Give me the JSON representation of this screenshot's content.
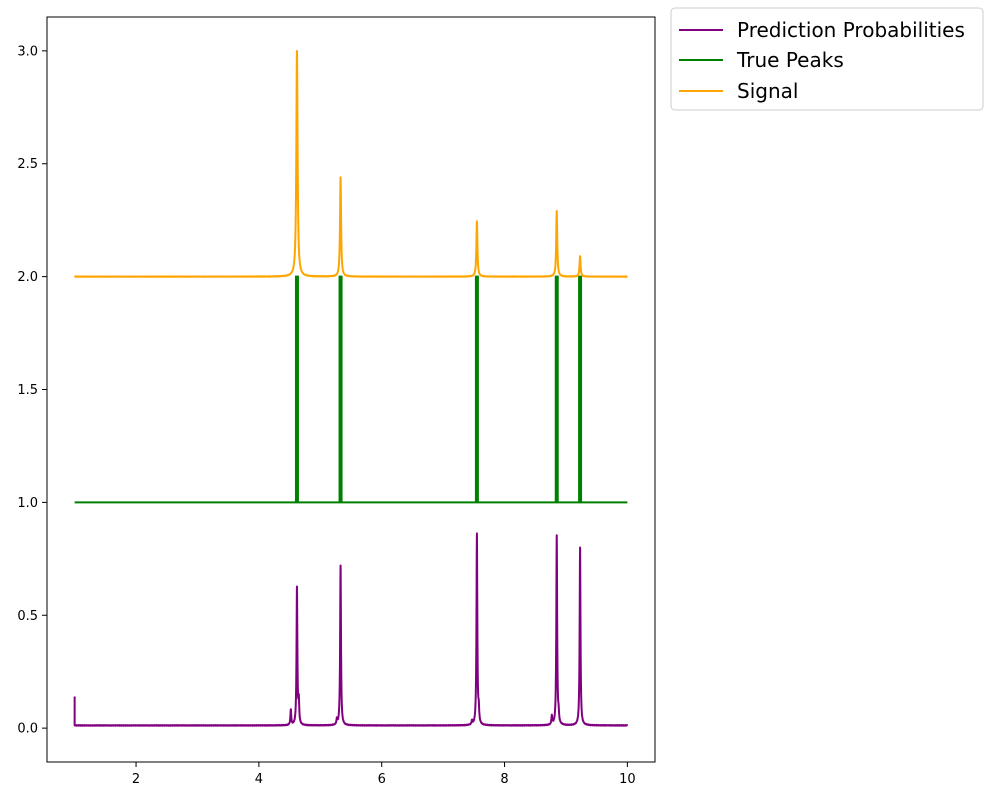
{
  "chart_data": {
    "type": "line",
    "title": "",
    "xlabel": "",
    "ylabel": "",
    "xlim": [
      0.55,
      10.45
    ],
    "ylim": [
      -0.15,
      3.15
    ],
    "x_ticks": [
      2,
      4,
      6,
      8,
      10
    ],
    "y_ticks": [
      0.0,
      0.5,
      1.0,
      1.5,
      2.0,
      2.5,
      3.0
    ],
    "x_tick_labels": [
      "2",
      "4",
      "6",
      "8",
      "10"
    ],
    "y_tick_labels": [
      "0.0",
      "0.5",
      "1.0",
      "1.5",
      "2.0",
      "2.5",
      "3.0"
    ],
    "grid": false,
    "legend_position": "outside-top-right",
    "series": [
      {
        "name": "Prediction Probabilities",
        "color": "#800080",
        "baseline": 0.012,
        "x_start": 1.0,
        "x_end": 10.0,
        "start_spike": 0.14,
        "peaks": [
          {
            "x": 4.52,
            "y": 0.08,
            "width": 0.008
          },
          {
            "x": 4.62,
            "y": 0.62,
            "width": 0.008
          },
          {
            "x": 4.65,
            "y": 0.11,
            "width": 0.008
          },
          {
            "x": 5.27,
            "y": 0.035,
            "width": 0.008
          },
          {
            "x": 5.33,
            "y": 0.72,
            "width": 0.008
          },
          {
            "x": 7.47,
            "y": 0.03,
            "width": 0.008
          },
          {
            "x": 7.55,
            "y": 0.86,
            "width": 0.008
          },
          {
            "x": 7.58,
            "y": 0.07,
            "width": 0.008
          },
          {
            "x": 8.77,
            "y": 0.05,
            "width": 0.008
          },
          {
            "x": 8.85,
            "y": 0.85,
            "width": 0.008
          },
          {
            "x": 8.88,
            "y": 0.05,
            "width": 0.008
          },
          {
            "x": 9.23,
            "y": 0.8,
            "width": 0.008
          }
        ]
      },
      {
        "name": "True Peaks",
        "color": "#008000",
        "baseline": 1.0,
        "x_start": 1.0,
        "x_end": 10.0,
        "peaks_x": [
          4.62,
          5.33,
          7.55,
          8.85,
          9.23
        ],
        "peak_y": 2.0
      },
      {
        "name": "Signal",
        "color": "#FFA500",
        "baseline": 2.0,
        "x_start": 1.0,
        "x_end": 10.0,
        "peaks": [
          {
            "x": 4.62,
            "y": 3.0,
            "width": 0.012
          },
          {
            "x": 5.33,
            "y": 2.44,
            "width": 0.01
          },
          {
            "x": 7.55,
            "y": 2.245,
            "width": 0.01
          },
          {
            "x": 8.85,
            "y": 2.29,
            "width": 0.01
          },
          {
            "x": 9.23,
            "y": 2.09,
            "width": 0.01
          }
        ]
      }
    ]
  },
  "legend": {
    "items": [
      {
        "label": "Prediction Probabilities",
        "color": "#800080"
      },
      {
        "label": "True Peaks",
        "color": "#008000"
      },
      {
        "label": "Signal",
        "color": "#FFA500"
      }
    ]
  }
}
